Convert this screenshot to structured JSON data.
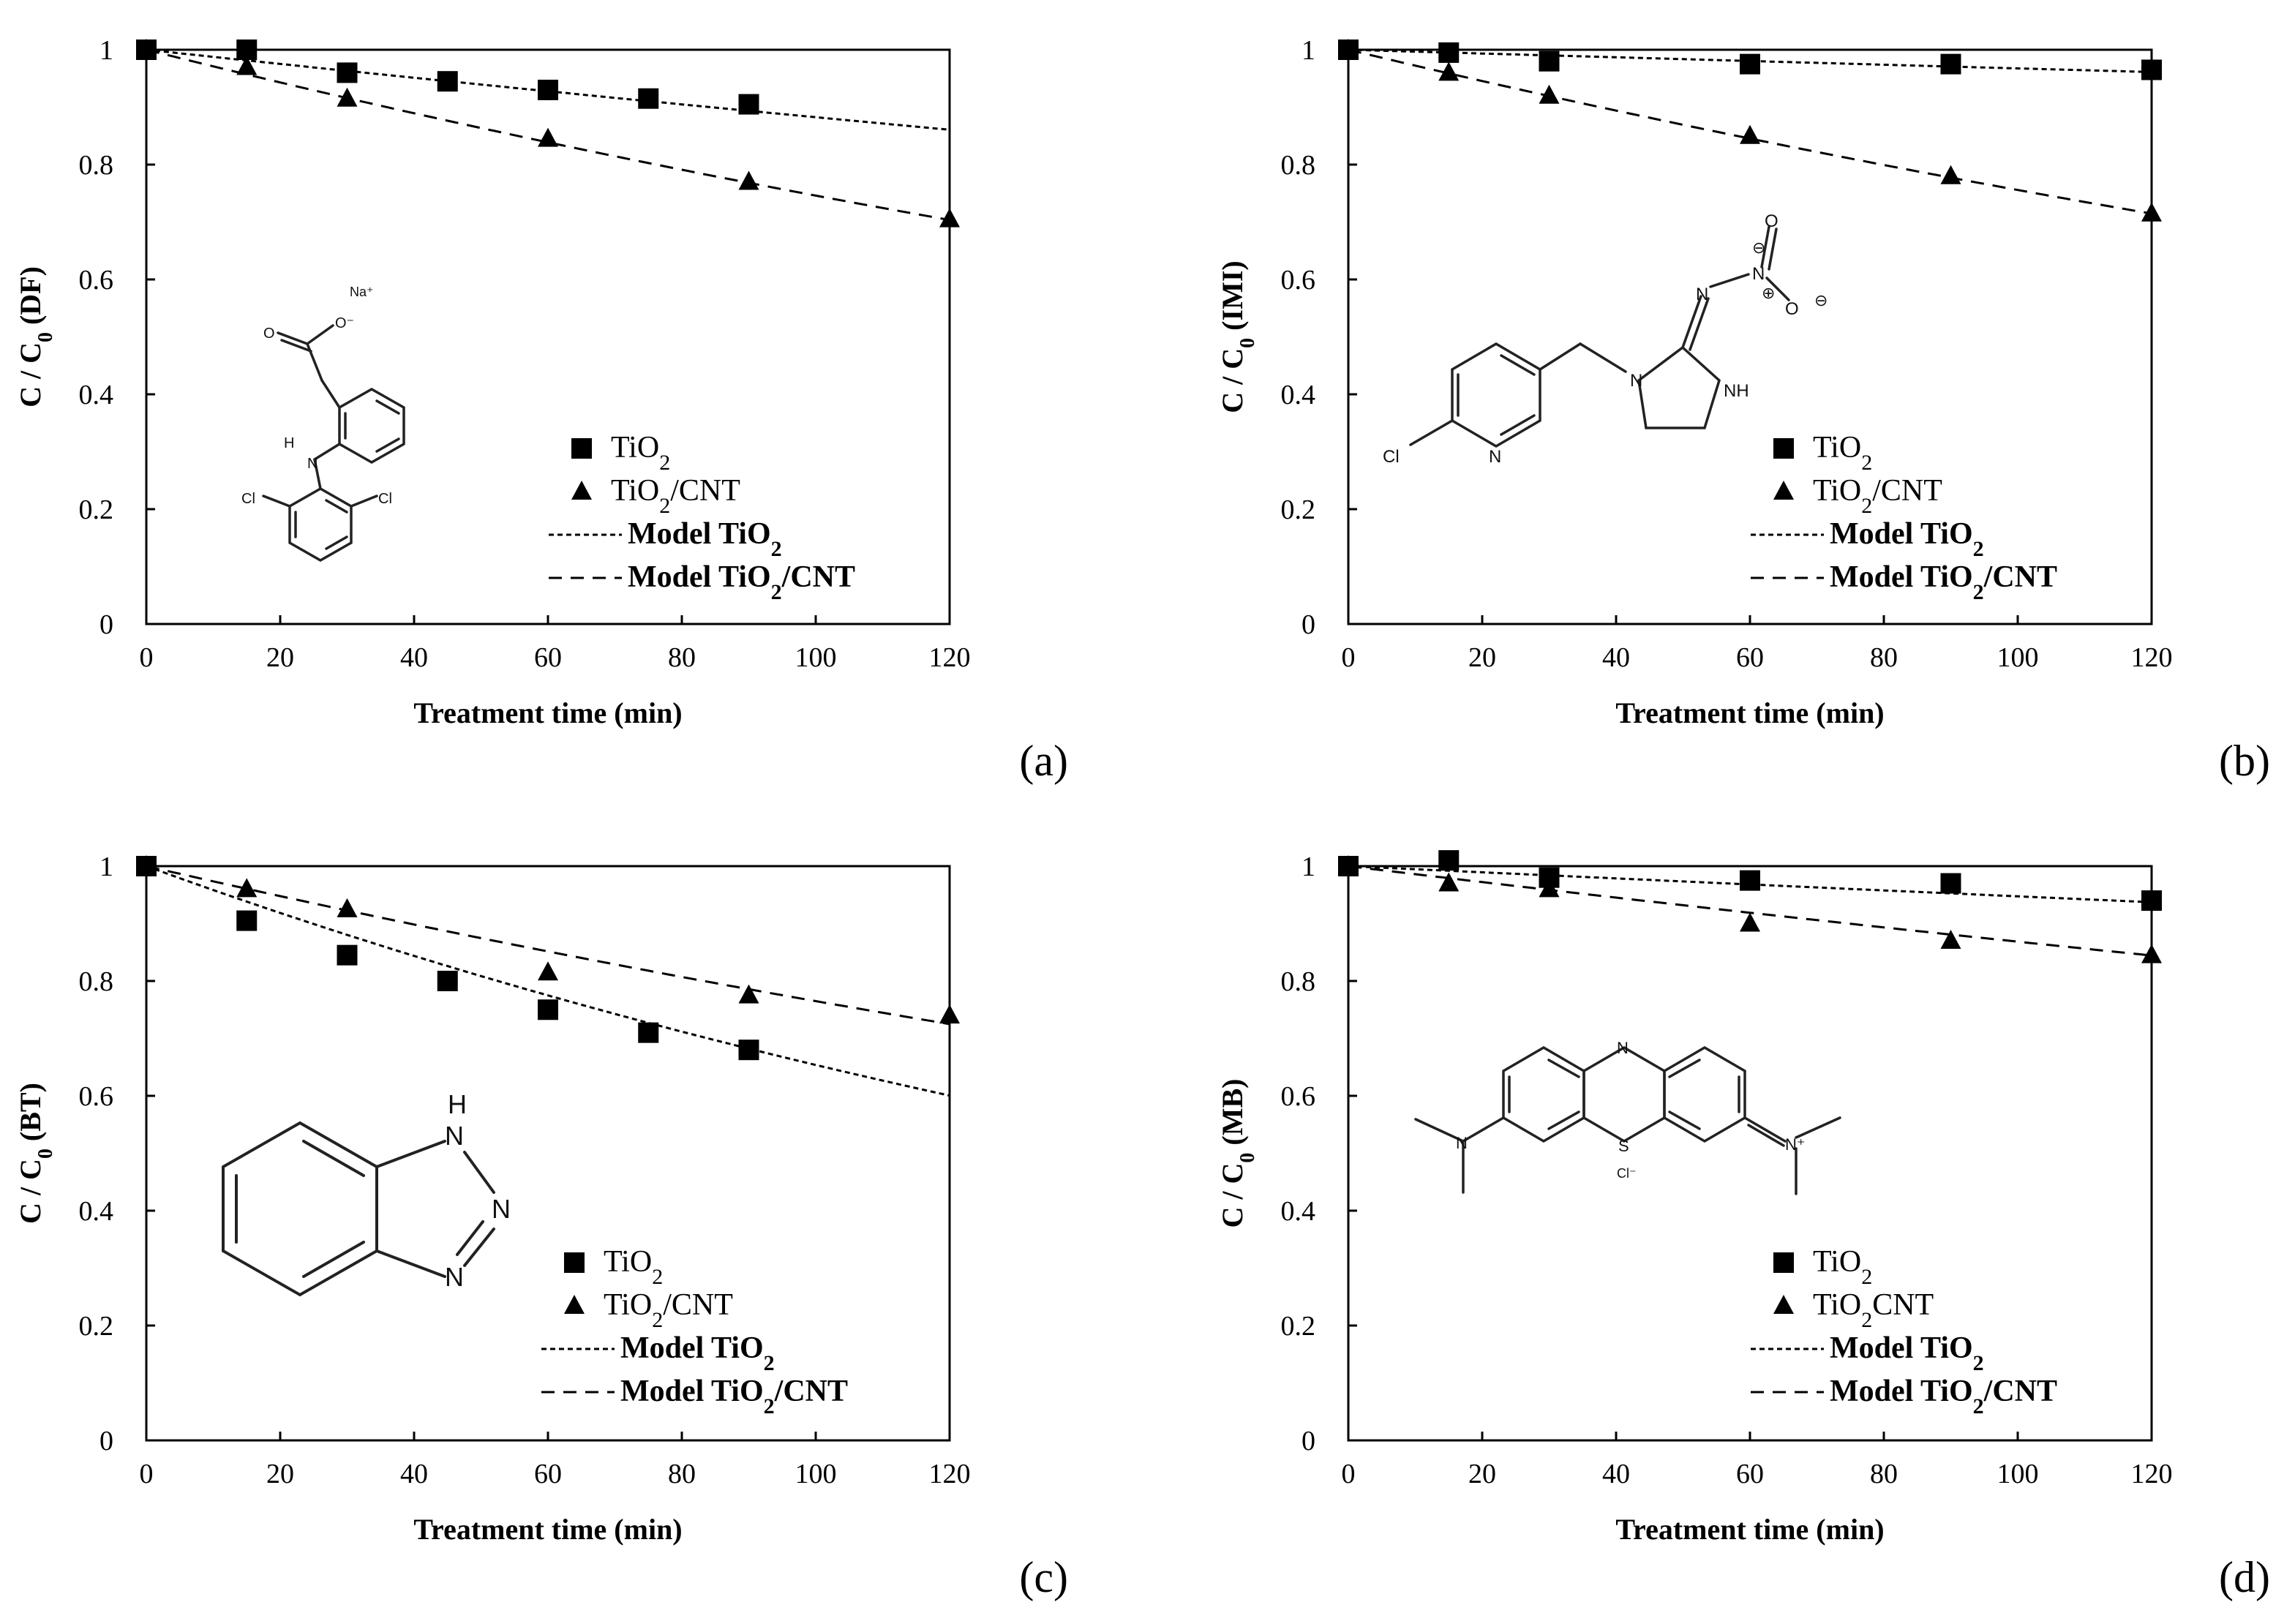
{
  "colors": {
    "ink": "#000000",
    "background": "#ffffff"
  },
  "chart_data": [
    {
      "type": "scatter",
      "panel": "(a)",
      "xlabel": "Treatment time (min)",
      "ylabel": "C / C0 (DF)",
      "ylabel_main": "C / C",
      "ylabel_sub": "0",
      "ylabel_suffix": " (DF)",
      "xlim": [
        0,
        120
      ],
      "ylim": [
        0,
        1
      ],
      "xticks": [
        "0",
        "20",
        "40",
        "60",
        "80",
        "100",
        "120"
      ],
      "yticks": [
        "0",
        "0.2",
        "0.4",
        "0.6",
        "0.8",
        "1"
      ],
      "legend_position": "lower-right",
      "series": [
        {
          "name": "TiO2",
          "label": "TiO",
          "label_sub": "2",
          "label_rest": "",
          "marker": "square",
          "x": [
            0,
            15,
            30,
            45,
            60,
            75,
            90
          ],
          "y": [
            1.0,
            1.0,
            0.96,
            0.945,
            0.93,
            0.915,
            0.905
          ]
        },
        {
          "name": "TiO2/CNT",
          "label": "TiO",
          "label_sub": "2",
          "label_rest": "/CNT",
          "marker": "triangle",
          "x": [
            0,
            15,
            30,
            60,
            90,
            120
          ],
          "y": [
            1.0,
            0.97,
            0.915,
            0.845,
            0.77,
            0.705
          ]
        }
      ],
      "models": [
        {
          "name": "Model TiO2",
          "label": "Model TiO",
          "label_sub": "2",
          "label_rest": "",
          "dash": "fine",
          "k": 0.00125
        },
        {
          "name": "Model TiO2/CNT",
          "label": "Model TiO",
          "label_sub": "2",
          "label_rest": "/CNT",
          "dash": "coarse",
          "k": 0.00293
        }
      ],
      "molecule": {
        "name": "diclofenac sodium",
        "atoms": {
          "na": "Na⁺",
          "o": "O",
          "o_minus": "O⁻",
          "nh_n": "N",
          "nh_h": "H",
          "cl1": "Cl",
          "cl2": "Cl"
        }
      }
    },
    {
      "type": "scatter",
      "panel": "(b)",
      "xlabel": "Treatment time (min)",
      "ylabel": "C / C0 (IMI)",
      "ylabel_main": "C / C",
      "ylabel_sub": "0",
      "ylabel_suffix": " (IMI)",
      "xlim": [
        0,
        120
      ],
      "ylim": [
        0,
        1
      ],
      "xticks": [
        "0",
        "20",
        "40",
        "60",
        "80",
        "100",
        "120"
      ],
      "yticks": [
        "0",
        "0.2",
        "0.4",
        "0.6",
        "0.8",
        "1"
      ],
      "legend_position": "lower-right",
      "series": [
        {
          "name": "TiO2",
          "label": "TiO",
          "label_sub": "2",
          "label_rest": "",
          "marker": "square",
          "x": [
            0,
            15,
            30,
            60,
            90,
            120
          ],
          "y": [
            1.0,
            0.995,
            0.98,
            0.975,
            0.975,
            0.965
          ]
        },
        {
          "name": "TiO2/CNT",
          "label": "TiO",
          "label_sub": "2",
          "label_rest": "/CNT",
          "marker": "triangle",
          "x": [
            0,
            15,
            30,
            60,
            90,
            120
          ],
          "y": [
            1.0,
            0.96,
            0.92,
            0.85,
            0.78,
            0.715
          ]
        }
      ],
      "models": [
        {
          "name": "Model TiO2",
          "label": "Model TiO",
          "label_sub": "2",
          "label_rest": "",
          "dash": "fine",
          "k": 0.00033
        },
        {
          "name": "Model TiO2/CNT",
          "label": "Model TiO",
          "label_sub": "2",
          "label_rest": "/CNT",
          "dash": "coarse",
          "k": 0.0028
        }
      ],
      "molecule": {
        "name": "imidacloprid",
        "atoms": {
          "cl": "Cl",
          "n_py": "N",
          "n1": "N",
          "nh": "NH",
          "n_imine": "N",
          "n_nitro": "N",
          "o_top": "O",
          "o_side": "O",
          "charge_plus": "⊕",
          "charge_minus1": "⊖",
          "charge_minus2": "⊖"
        }
      }
    },
    {
      "type": "scatter",
      "panel": "(c)",
      "xlabel": "Treatment time (min)",
      "ylabel": "C / C0 (BT)",
      "ylabel_main": "C / C",
      "ylabel_sub": "0",
      "ylabel_suffix": " (BT)",
      "xlim": [
        0,
        120
      ],
      "ylim": [
        0,
        1
      ],
      "xticks": [
        "0",
        "20",
        "40",
        "60",
        "80",
        "100",
        "120"
      ],
      "yticks": [
        "0",
        "0.2",
        "0.4",
        "0.6",
        "0.8",
        "1"
      ],
      "legend_position": "lower-right",
      "series": [
        {
          "name": "TiO2",
          "label": "TiO",
          "label_sub": "2",
          "label_rest": "",
          "marker": "square",
          "x": [
            0,
            15,
            30,
            45,
            60,
            75,
            90
          ],
          "y": [
            1.0,
            0.905,
            0.845,
            0.8,
            0.75,
            0.71,
            0.68
          ]
        },
        {
          "name": "TiO2/CNT",
          "label": "TiO",
          "label_sub": "2",
          "label_rest": "/CNT",
          "marker": "triangle",
          "x": [
            0,
            15,
            30,
            60,
            90,
            120
          ],
          "y": [
            1.0,
            0.96,
            0.925,
            0.815,
            0.775,
            0.74
          ]
        }
      ],
      "models": [
        {
          "name": "Model TiO2",
          "label": "Model TiO",
          "label_sub": "2",
          "label_rest": "",
          "dash": "fine",
          "k": 0.00425
        },
        {
          "name": "Model TiO2/CNT",
          "label": "Model TiO",
          "label_sub": "2",
          "label_rest": "/CNT",
          "dash": "coarse",
          "k": 0.00268
        }
      ],
      "molecule": {
        "name": "benzotriazole",
        "atoms": {
          "h": "H",
          "n1": "N",
          "n2": "N",
          "n3": "N"
        }
      }
    },
    {
      "type": "scatter",
      "panel": "(d)",
      "xlabel": "Treatment time (min)",
      "ylabel": "C / C0 (MB)",
      "ylabel_main": "C / C",
      "ylabel_sub": "0",
      "ylabel_suffix": " (MB)",
      "xlim": [
        0,
        120
      ],
      "ylim": [
        0,
        1
      ],
      "xticks": [
        "0",
        "20",
        "40",
        "60",
        "80",
        "100",
        "120"
      ],
      "yticks": [
        "0",
        "0.2",
        "0.4",
        "0.6",
        "0.8",
        "1"
      ],
      "legend_position": "lower-right",
      "series": [
        {
          "name": "TiO2",
          "label": "TiO",
          "label_sub": "2",
          "label_rest": "",
          "marker": "square",
          "x": [
            0,
            15,
            30,
            60,
            90,
            120
          ],
          "y": [
            1.0,
            1.01,
            0.98,
            0.975,
            0.97,
            0.94
          ]
        },
        {
          "name": "TiO2CNT",
          "label": "TiO",
          "label_sub": "2",
          "label_rest": "CNT",
          "marker": "triangle",
          "x": [
            0,
            15,
            30,
            60,
            90,
            120
          ],
          "y": [
            1.0,
            0.97,
            0.96,
            0.9,
            0.87,
            0.845
          ]
        }
      ],
      "models": [
        {
          "name": "Model TiO2",
          "label": "Model TiO",
          "label_sub": "2",
          "label_rest": "",
          "dash": "fine",
          "k": 0.00054
        },
        {
          "name": "Model TiO2/CNT",
          "label": "Model TiO",
          "label_sub": "2",
          "label_rest": "/CNT",
          "dash": "coarse",
          "k": 0.00141
        }
      ],
      "molecule": {
        "name": "methylene blue",
        "atoms": {
          "n_top": "N",
          "s": "S",
          "n_left": "N",
          "n_right": "N⁺",
          "cl": "Cl⁻"
        }
      }
    }
  ]
}
